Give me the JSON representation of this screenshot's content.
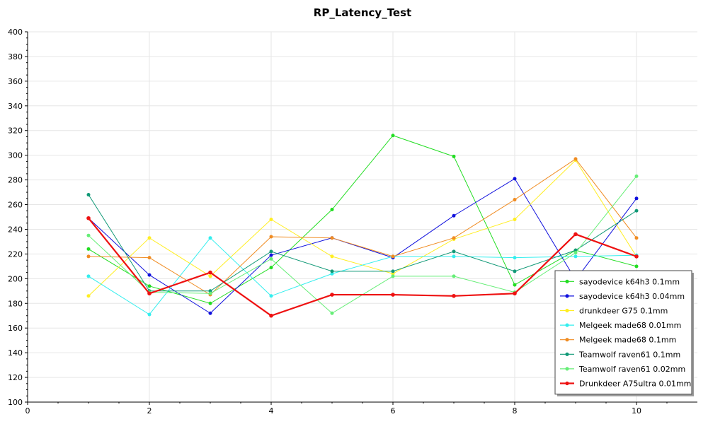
{
  "chart_data": {
    "type": "line",
    "title": "RP_Latency_Test",
    "xlabel": "",
    "ylabel": "",
    "xlim": [
      0,
      11
    ],
    "ylim": [
      100,
      400
    ],
    "x_ticks": [
      0,
      2,
      4,
      6,
      8,
      10
    ],
    "y_ticks": [
      100,
      120,
      140,
      160,
      180,
      200,
      220,
      240,
      260,
      280,
      300,
      320,
      340,
      360,
      380,
      400
    ],
    "grid": true,
    "legend_position": "bottom-right",
    "x": [
      1,
      2,
      3,
      4,
      5,
      6,
      7,
      8,
      9,
      10
    ],
    "series": [
      {
        "name": "sayodevice k64h3 0.1mm",
        "color": "#22dd22",
        "values": [
          224,
          194,
          180,
          209,
          256,
          316,
          299,
          195,
          223,
          210
        ]
      },
      {
        "name": "sayodevice k64h3 0.04mm",
        "color": "#1010dd",
        "values": [
          249,
          203,
          172,
          219,
          233,
          217,
          251,
          281,
          199,
          265
        ]
      },
      {
        "name": "drunkdeer G75 0.1mm",
        "color": "#ffee22",
        "values": [
          186,
          233,
          202,
          248,
          218,
          204,
          232,
          248,
          296,
          218
        ]
      },
      {
        "name": "Melgeek made68 0.01mm",
        "color": "#33eeee",
        "values": [
          202,
          171,
          233,
          186,
          204,
          218,
          218,
          217,
          218,
          219
        ]
      },
      {
        "name": "Melgeek made68 0.1mm",
        "color": "#f08c22",
        "values": [
          218,
          217,
          187,
          234,
          233,
          218,
          233,
          264,
          297,
          233
        ]
      },
      {
        "name": "Teamwolf raven61 0.1mm",
        "color": "#119977",
        "values": [
          268,
          190,
          190,
          222,
          206,
          206,
          222,
          206,
          223,
          255
        ]
      },
      {
        "name": "Teamwolf raven61 0.02mm",
        "color": "#66ee77",
        "values": [
          235,
          189,
          188,
          216,
          172,
          202,
          202,
          189,
          221,
          283
        ]
      },
      {
        "name": "Drunkdeer A75ultra 0.01mm",
        "color": "#ee1111",
        "values": [
          249,
          188,
          205,
          170,
          187,
          187,
          186,
          188,
          236,
          218
        ]
      }
    ]
  }
}
